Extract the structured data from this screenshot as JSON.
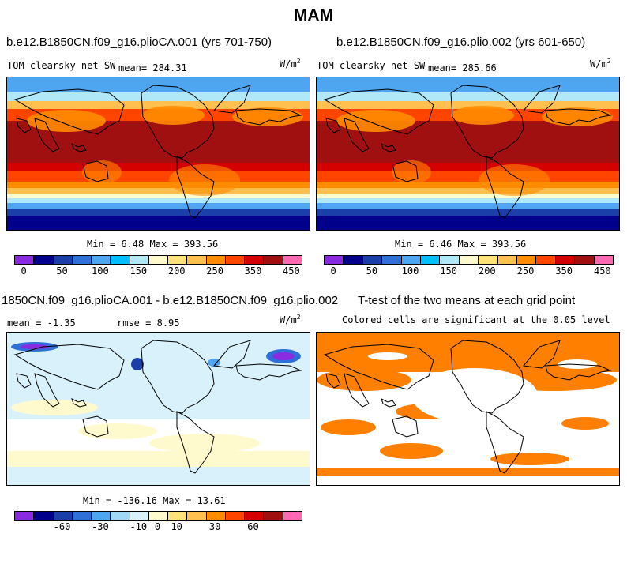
{
  "title": "MAM",
  "colors": {
    "abs_palette": [
      "#8a2be2",
      "#00008b",
      "#1a3fa8",
      "#2f6fd8",
      "#4ea5f0",
      "#00bfff",
      "#b0e8f8",
      "#fffacd",
      "#ffe27a",
      "#ffc050",
      "#ff8c00",
      "#ff4500",
      "#d50000",
      "#a01010",
      "#ff69b4"
    ],
    "diff_palette": [
      "#8a2be2",
      "#00008b",
      "#1a3fa8",
      "#2f6fd8",
      "#4ea5f0",
      "#9fd9f5",
      "#d8f1fa",
      "#fffacd",
      "#ffe27a",
      "#ffc050",
      "#ff8c00",
      "#ff4500",
      "#d50000",
      "#a01010",
      "#ff69b4"
    ],
    "signif": "#ff7f00"
  },
  "panels": {
    "ca": {
      "title": "b.e12.B1850CN.f09_g16.plioCA.001 (yrs 701-750)",
      "variable": "TOM clearsky net SW",
      "mean_label": "mean= 284.31",
      "units": "W/m",
      "units_exp": "2",
      "min_label": "Min =",
      "min_value": "6.48",
      "max_label": "Max =",
      "max_value": "393.56",
      "ticks": [
        "0",
        "50",
        "100",
        "150",
        "200",
        "250",
        "350",
        "450"
      ]
    },
    "plio": {
      "title": "b.e12.B1850CN.f09_g16.plio.002 (yrs 601-650)",
      "variable": "TOM clearsky net SW",
      "mean_label": "mean= 285.66",
      "units": "W/m",
      "units_exp": "2",
      "min_label": "Min =",
      "min_value": "6.46",
      "max_label": "Max =",
      "max_value": "393.56",
      "ticks": [
        "0",
        "50",
        "100",
        "150",
        "200",
        "250",
        "350",
        "450"
      ]
    },
    "diff": {
      "title": "1850CN.f09_g16.plioCA.001 - b.e12.B1850CN.f09_g16.plio.002",
      "mean_label": "mean =",
      "mean_value": "-1.35",
      "rmse_label": "rmse =",
      "rmse_value": "8.95",
      "units": "W/m",
      "units_exp": "2",
      "min_label": "Min =",
      "min_value": "-136.16",
      "max_label": "Max =",
      "max_value": "13.61",
      "ticks": [
        "-60",
        "-30",
        "-10",
        "0",
        "10",
        "30",
        "60"
      ]
    },
    "ttest": {
      "title": "T-test of the two means at each grid point",
      "note": "Colored cells are significant at the 0.05 level"
    }
  },
  "chart_data": [
    {
      "type": "heatmap",
      "title": "b.e12.B1850CN.f09_g16.plioCA.001 (yrs 701-750)",
      "variable": "TOM clearsky net SW",
      "units": "W/m2",
      "mean": 284.31,
      "min": 6.48,
      "max": 393.56,
      "colorbar_ticks": [
        0,
        50,
        100,
        150,
        200,
        250,
        350,
        450
      ]
    },
    {
      "type": "heatmap",
      "title": "b.e12.B1850CN.f09_g16.plio.002 (yrs 601-650)",
      "variable": "TOM clearsky net SW",
      "units": "W/m2",
      "mean": 285.66,
      "min": 6.46,
      "max": 393.56,
      "colorbar_ticks": [
        0,
        50,
        100,
        150,
        200,
        250,
        350,
        450
      ]
    },
    {
      "type": "heatmap",
      "title": "1850CN.f09_g16.plioCA.001 - b.e12.B1850CN.f09_g16.plio.002",
      "units": "W/m2",
      "mean": -1.35,
      "rmse": 8.95,
      "min": -136.16,
      "max": 13.61,
      "colorbar_ticks": [
        -60,
        -30,
        -10,
        0,
        10,
        30,
        60
      ]
    },
    {
      "type": "heatmap",
      "title": "T-test of the two means at each grid point",
      "note": "Colored cells are significant at the 0.05 level"
    }
  ]
}
